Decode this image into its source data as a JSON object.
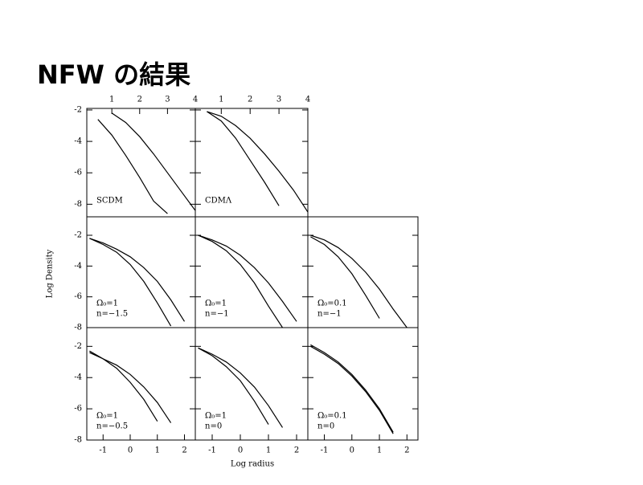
{
  "title": "NFW の結果",
  "figure": {
    "ylabel": "Log Density",
    "xlabel": "Log radius"
  },
  "chart_data": [
    {
      "type": "line",
      "label": [
        "SCDM"
      ],
      "x": [
        0.5,
        1,
        1.5,
        2,
        2.5,
        3,
        3.5,
        4
      ],
      "series": [
        {
          "color": "#000000",
          "values": [
            -2.6,
            -3.6,
            -4.9,
            -6.3,
            -7.8,
            -8.6,
            null,
            null
          ]
        },
        {
          "color": "#000000",
          "values": [
            null,
            -2.2,
            -2.8,
            -3.7,
            -4.8,
            -6.0,
            -7.2,
            -8.4
          ]
        }
      ],
      "xlim": [
        0.1,
        4
      ],
      "ylim": [
        -8.8,
        -1.9
      ],
      "xticks": [
        1,
        2,
        3,
        4
      ],
      "yticks": [
        -2,
        -4,
        -6,
        -8
      ]
    },
    {
      "type": "line",
      "label": [
        "CDMΛ"
      ],
      "x": [
        0.5,
        1,
        1.5,
        2,
        2.5,
        3,
        3.5,
        4
      ],
      "series": [
        {
          "color": "#000000",
          "values": [
            -2.1,
            -2.7,
            -3.8,
            -5.2,
            -6.6,
            -8.1,
            null,
            null
          ]
        },
        {
          "color": "#000000",
          "values": [
            -2.1,
            -2.4,
            -3.0,
            -3.8,
            -4.8,
            -5.9,
            -7.1,
            -8.5
          ]
        }
      ],
      "xlim": [
        0.1,
        4
      ],
      "ylim": [
        -8.8,
        -1.9
      ],
      "xticks": [
        1,
        2,
        3,
        4
      ],
      "yticks": [
        -2,
        -4,
        -6,
        -8
      ]
    },
    {
      "type": "line",
      "label": [
        "Ω₀=1",
        "n=−1.5"
      ],
      "x": [
        -1.5,
        -1,
        -0.5,
        0,
        0.5,
        1,
        1.5,
        2
      ],
      "series": [
        {
          "color": "#000000",
          "values": [
            -2.2,
            -2.6,
            -3.1,
            -3.9,
            -5.0,
            -6.4,
            -7.9,
            null
          ]
        },
        {
          "color": "#000000",
          "values": [
            -2.2,
            -2.5,
            -2.9,
            -3.4,
            -4.1,
            -5.0,
            -6.2,
            -7.6
          ]
        }
      ],
      "xlim": [
        -1.6,
        2.4
      ],
      "ylim": [
        -8,
        -0.8
      ],
      "yticks": [
        -2,
        -4,
        -6,
        -8
      ]
    },
    {
      "type": "line",
      "label": [
        "Ω₀=1",
        "n=−1"
      ],
      "x": [
        -1.5,
        -1,
        -0.5,
        0,
        0.5,
        1,
        1.5,
        2
      ],
      "series": [
        {
          "color": "#000000",
          "values": [
            -2.0,
            -2.4,
            -3.0,
            -3.9,
            -5.1,
            -6.6,
            -8.0,
            null
          ]
        },
        {
          "color": "#000000",
          "values": [
            -2.0,
            -2.3,
            -2.7,
            -3.3,
            -4.1,
            -5.1,
            -6.3,
            -7.6
          ]
        }
      ],
      "xlim": [
        -1.6,
        2.4
      ],
      "ylim": [
        -8,
        -0.8
      ],
      "yticks": [
        -2,
        -4,
        -6,
        -8
      ]
    },
    {
      "type": "line",
      "label": [
        "Ω₀=0.1",
        "n=−1"
      ],
      "x": [
        -1.5,
        -1,
        -0.5,
        0,
        0.5,
        1,
        1.5,
        2
      ],
      "series": [
        {
          "color": "#000000",
          "values": [
            -2.1,
            -2.6,
            -3.4,
            -4.5,
            -5.9,
            -7.4,
            null,
            null
          ]
        },
        {
          "color": "#000000",
          "values": [
            -2.0,
            -2.3,
            -2.8,
            -3.5,
            -4.4,
            -5.5,
            -6.8,
            -8.0
          ]
        }
      ],
      "xlim": [
        -1.6,
        2.4
      ],
      "ylim": [
        -8,
        -0.8
      ],
      "yticks": [
        -2,
        -4,
        -6,
        -8
      ]
    },
    {
      "type": "line",
      "label": [
        "Ω₀=1",
        "n=−0.5"
      ],
      "x": [
        -1.5,
        -1,
        -0.5,
        0,
        0.5,
        1,
        1.5,
        2
      ],
      "series": [
        {
          "color": "#000000",
          "values": [
            -2.3,
            -2.8,
            -3.4,
            -4.3,
            -5.4,
            -6.8,
            null,
            null
          ]
        },
        {
          "color": "#000000",
          "values": [
            -2.4,
            -2.8,
            -3.2,
            -3.8,
            -4.6,
            -5.6,
            -6.9,
            null
          ]
        }
      ],
      "xlim": [
        -1.6,
        2.4
      ],
      "ylim": [
        -8,
        -0.8
      ],
      "xticks": [
        -1,
        0,
        1,
        2
      ],
      "yticks": [
        -2,
        -4,
        -6,
        -8
      ]
    },
    {
      "type": "line",
      "label": [
        "Ω₀=1",
        "n=0"
      ],
      "x": [
        -1.5,
        -1,
        -0.5,
        0,
        0.5,
        1,
        1.5,
        2
      ],
      "series": [
        {
          "color": "#000000",
          "values": [
            -2.1,
            -2.6,
            -3.3,
            -4.2,
            -5.5,
            -7.0,
            null,
            null
          ]
        },
        {
          "color": "#000000",
          "values": [
            -2.1,
            -2.5,
            -3.0,
            -3.7,
            -4.6,
            -5.8,
            -7.2,
            null
          ]
        }
      ],
      "xlim": [
        -1.6,
        2.4
      ],
      "ylim": [
        -8,
        -0.8
      ],
      "xticks": [
        -1,
        0,
        1,
        2
      ],
      "yticks": [
        -2,
        -4,
        -6,
        -8
      ]
    },
    {
      "type": "line",
      "label": [
        "Ω₀=0.1",
        "n=0"
      ],
      "x": [
        -1.5,
        -1,
        -0.5,
        0,
        0.5,
        1,
        1.5,
        2
      ],
      "series": [
        {
          "color": "#000000",
          "values": [
            -2.0,
            -2.5,
            -3.1,
            -3.9,
            -4.9,
            -6.1,
            -7.6,
            null
          ]
        },
        {
          "color": "#000000",
          "values": [
            -1.9,
            -2.4,
            -3.0,
            -3.8,
            -4.8,
            -6.0,
            -7.5,
            null
          ]
        }
      ],
      "xlim": [
        -1.6,
        2.4
      ],
      "ylim": [
        -8,
        -0.8
      ],
      "xticks": [
        -1,
        0,
        1,
        2
      ],
      "yticks": [
        -2,
        -4,
        -6,
        -8
      ]
    }
  ]
}
